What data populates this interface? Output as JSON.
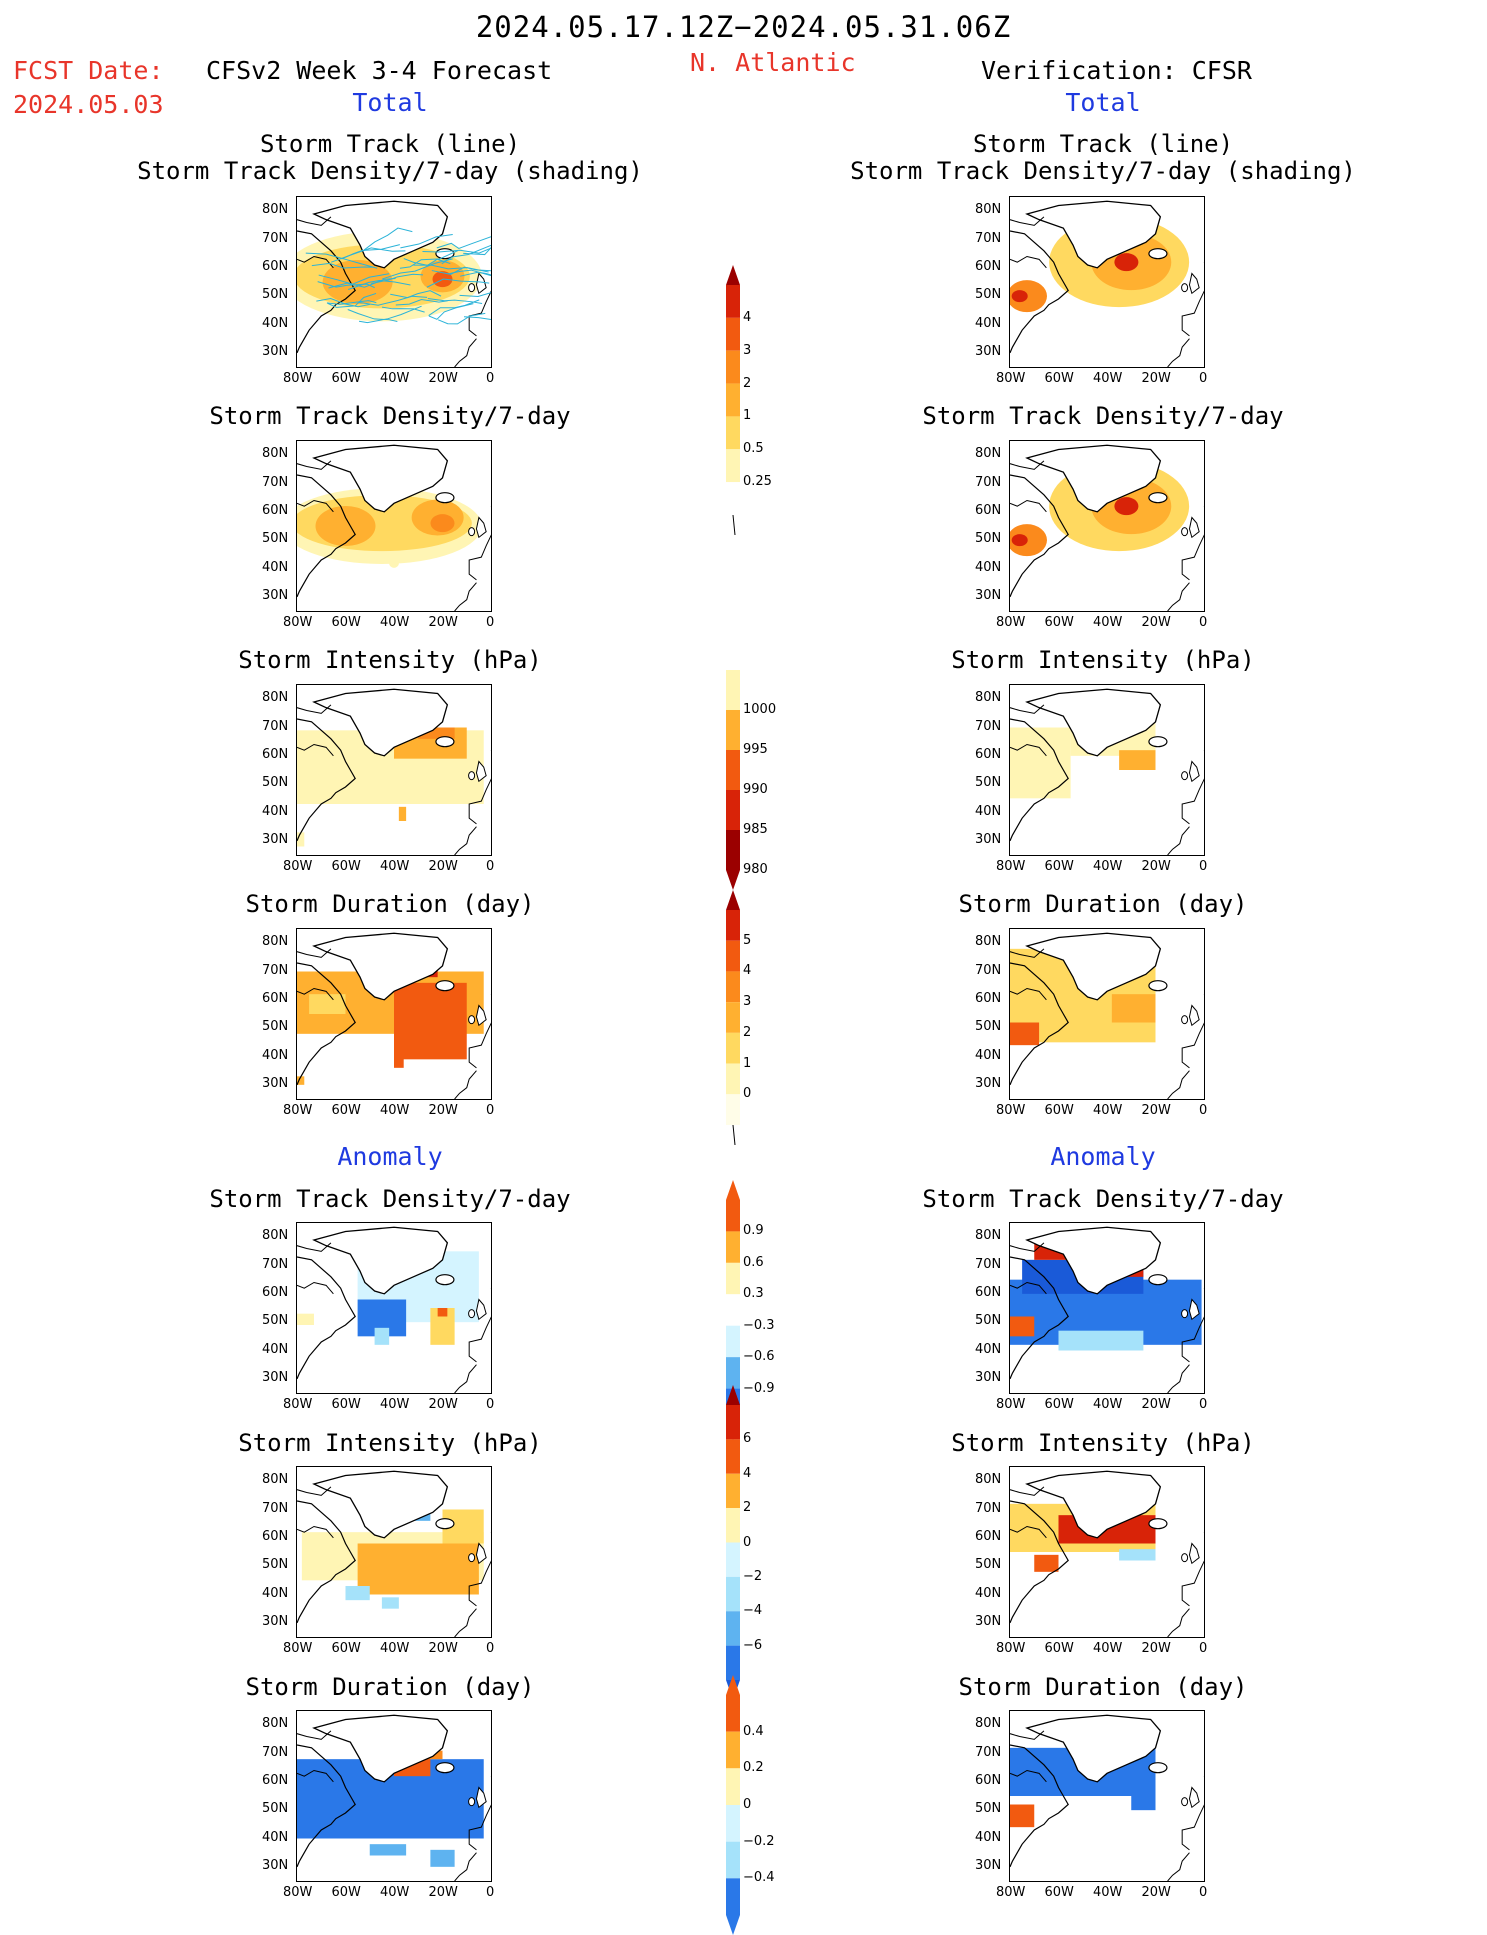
{
  "header": {
    "date_range": "2024.05.17.12Z−2024.05.31.06Z",
    "region": "N. Atlantic",
    "fcst_date_label": "FCST Date:",
    "fcst_date_value": "2024.05.03",
    "left_model": "CFSv2 Week 3-4 Forecast",
    "right_model": "Verification: CFSR",
    "left_total": "Total",
    "right_total": "Total",
    "left_anomaly": "Anomaly",
    "right_anomaly": "Anomaly"
  },
  "titles": {
    "track_line": "Storm Track (line)",
    "track_shading": "Storm Track Density/7-day (shading)",
    "density": "Storm Track Density/7-day",
    "intensity": "Storm Intensity (hPa)",
    "duration": "Storm Duration (day)"
  },
  "axes": {
    "lat_labels": [
      "80N",
      "70N",
      "60N",
      "50N",
      "40N",
      "30N"
    ],
    "lon_labels": [
      "80W",
      "60W",
      "40W",
      "20W",
      "0"
    ]
  },
  "colors": {
    "c1": "#fff5b4",
    "c2": "#ffd960",
    "c3": "#ffb030",
    "c4": "#fb8a1c",
    "c5": "#f25a10",
    "c6": "#d82308",
    "c7": "#9b0000",
    "b1": "#d4f4ff",
    "b2": "#a5e2fa",
    "b3": "#5eb3f0",
    "b4": "#2a78e8",
    "b5": "#1a5ad8",
    "track": "#2bb3d8",
    "land": "#ffffff"
  },
  "colorbars": {
    "density": [
      "4",
      "3",
      "2",
      "1",
      "0.5",
      "0.25"
    ],
    "intensity": [
      "1000",
      "995",
      "990",
      "985",
      "980"
    ],
    "duration": [
      "5",
      "4",
      "3",
      "2",
      "1",
      "0"
    ],
    "anom_density": [
      "0.9",
      "0.6",
      "0.3",
      "−0.3",
      "−0.6",
      "−0.9"
    ],
    "anom_intensity": [
      "6",
      "4",
      "2",
      "0",
      "−2",
      "−4",
      "−6"
    ],
    "anom_duration": [
      "0.4",
      "0.2",
      "0",
      "−0.2",
      "−0.4"
    ]
  }
}
